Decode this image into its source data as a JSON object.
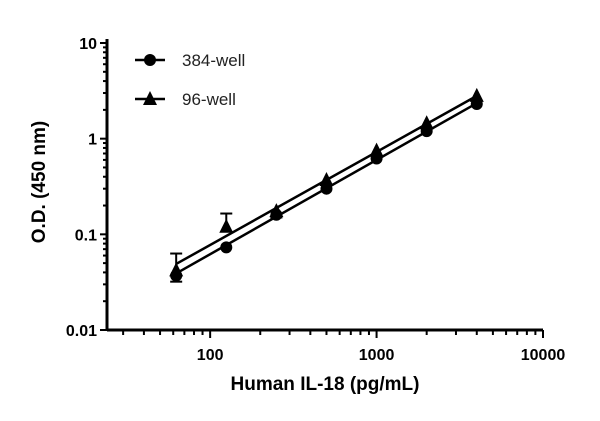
{
  "chart_data": {
    "type": "scatter",
    "title": "",
    "xlabel": "Human IL-18 (pg/mL)",
    "ylabel": "O.D. (450 nm)",
    "x_scale": "log",
    "y_scale": "log",
    "xlim": [
      24,
      10000
    ],
    "ylim": [
      0.01,
      10
    ],
    "x_ticks": [
      100,
      1000,
      10000
    ],
    "x_tick_labels": [
      "100",
      "1000",
      "10000"
    ],
    "y_ticks": [
      0.01,
      0.1,
      1,
      10
    ],
    "y_tick_labels": [
      "0.01",
      "0.1",
      "1",
      "10"
    ],
    "grid": false,
    "legend_position": "top-left",
    "color": "#000000",
    "series": [
      {
        "name": "384-well",
        "marker": "circle",
        "x": [
          62.5,
          125,
          250,
          500,
          1000,
          2000,
          4000
        ],
        "y": [
          0.037,
          0.073,
          0.16,
          0.3,
          0.62,
          1.2,
          2.3
        ],
        "error_low": [
          0.032,
          null,
          0.15,
          null,
          null,
          null,
          null
        ],
        "fit_line": {
          "x": [
            62.5,
            4000
          ],
          "y": [
            0.039,
            2.35
          ]
        }
      },
      {
        "name": "96-well",
        "marker": "triangle",
        "x": [
          62.5,
          125,
          250,
          500,
          1000,
          2000,
          4000
        ],
        "y": [
          0.042,
          0.12,
          0.175,
          0.37,
          0.75,
          1.45,
          2.8
        ],
        "error_high": [
          0.063,
          0.165,
          null,
          null,
          null,
          null,
          null
        ],
        "fit_line": {
          "x": [
            62.5,
            4000
          ],
          "y": [
            0.049,
            2.8
          ]
        }
      }
    ]
  }
}
